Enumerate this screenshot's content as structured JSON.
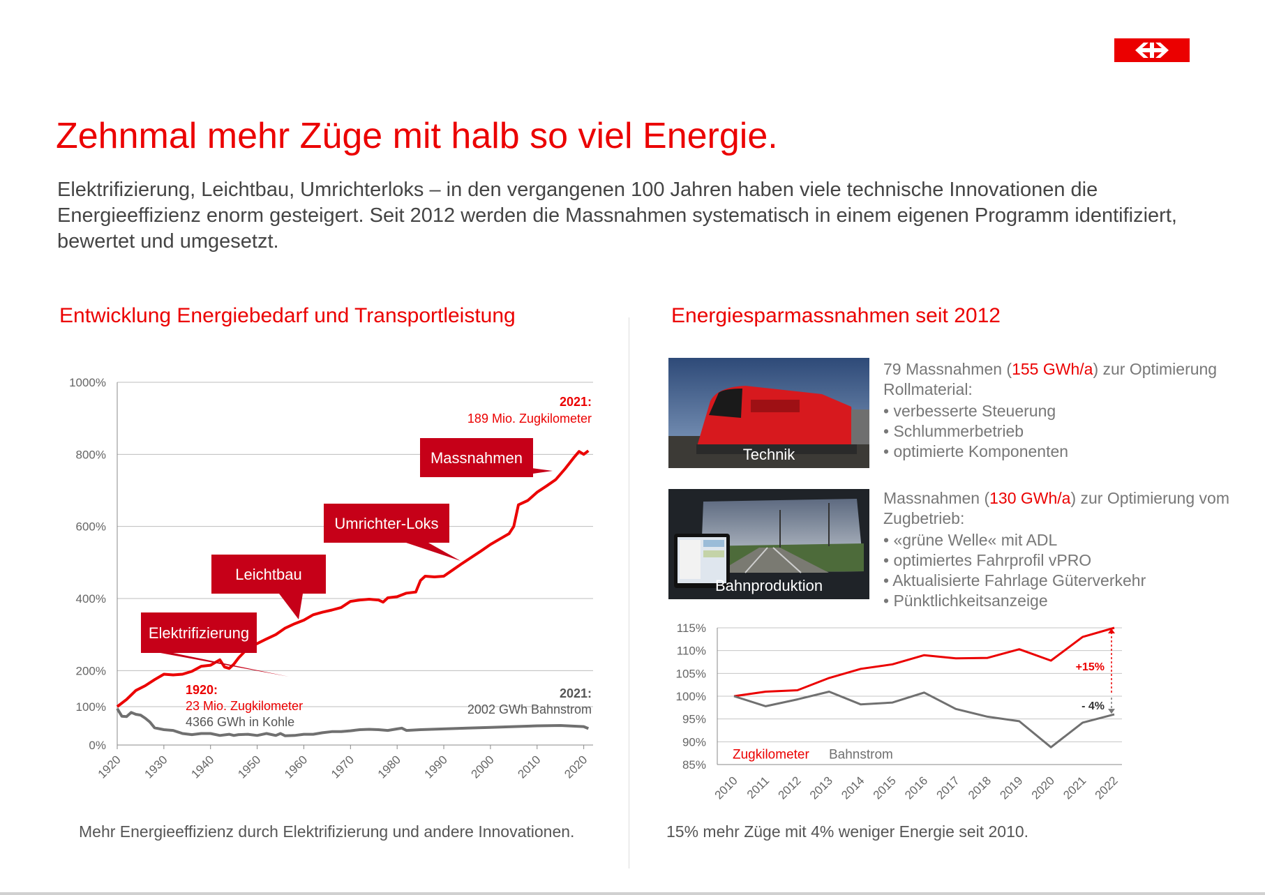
{
  "logo": {
    "brand_color": "#eb0000",
    "icon": "sbb-arrows-icon"
  },
  "title": "Zehnmal mehr Züge mit halb so viel Energie.",
  "intro": "Elektrifizierung, Leichtbau,  Umrichterloks – in den vergangenen 100 Jahren haben viele technische Innovationen die Energieeffizienz enorm gesteigert. Seit 2012 werden die Massnahmen systematisch in einem eigenen Programm identifiziert, bewertet und umgesetzt.",
  "left": {
    "title": "Entwicklung Energiebedarf und Transportleistung",
    "caption": "Mehr Energieeffizienz durch Elektrifizierung und andere Innovationen."
  },
  "right": {
    "title": "Energiesparmassnahmen seit 2012",
    "caption": "15% mehr Züge mit 4% weniger Energie seit 2010.",
    "block1": {
      "photo_label": "Technik",
      "pre": "79 Massnahmen (",
      "highlight": "155 GWh/a",
      "post": ") zur Optimierung Rollmaterial:",
      "bullets": [
        "verbesserte Steuerung",
        "Schlummerbetrieb",
        "optimierte Komponenten"
      ]
    },
    "block2": {
      "photo_label": "Bahnproduktion",
      "pre": "Massnahmen (",
      "highlight": "130 GWh/a",
      "post": ") zur Optimierung vom Zugbetrieb:",
      "bullets": [
        "«grüne Welle« mit ADL",
        "optimiertes Fahrprofil vPRO",
        "Aktualisierte Fahrlage Güterverkehr",
        "Pünktlichkeitsanzeige"
      ]
    }
  },
  "chart_data": [
    {
      "type": "line",
      "y_ticks": [
        "0%",
        "100%",
        "200%",
        "400%",
        "600%",
        "800%",
        "1000%"
      ],
      "y_tick_values": [
        0,
        100,
        200,
        400,
        600,
        800,
        1000
      ],
      "x_ticks": [
        "1920",
        "1930",
        "1940",
        "1950",
        "1960",
        "1970",
        "1980",
        "1990",
        "2000",
        "2010",
        "2020"
      ],
      "xlim": [
        1920,
        2022
      ],
      "ylim": [
        0,
        1000
      ],
      "grid": true,
      "series": [
        {
          "name": "Zugkilometer",
          "color": "#eb0000",
          "x": [
            1920,
            1922,
            1924,
            1926,
            1928,
            1930,
            1932,
            1934,
            1936,
            1938,
            1940,
            1942,
            1943,
            1944,
            1945,
            1946,
            1948,
            1950,
            1952,
            1954,
            1956,
            1958,
            1960,
            1962,
            1964,
            1966,
            1968,
            1970,
            1972,
            1974,
            1976,
            1977,
            1978,
            1980,
            1982,
            1984,
            1985,
            1986,
            1988,
            1990,
            1992,
            1994,
            1996,
            1998,
            2000,
            2002,
            2004,
            2005,
            2006,
            2008,
            2010,
            2012,
            2014,
            2016,
            2018,
            2019,
            2020,
            2021
          ],
          "values": [
            100,
            120,
            145,
            158,
            175,
            190,
            188,
            190,
            198,
            212,
            215,
            230,
            210,
            206,
            218,
            235,
            262,
            275,
            288,
            300,
            318,
            330,
            340,
            355,
            362,
            368,
            375,
            392,
            396,
            398,
            396,
            390,
            402,
            405,
            415,
            418,
            450,
            462,
            460,
            462,
            480,
            498,
            515,
            532,
            550,
            565,
            580,
            600,
            660,
            672,
            695,
            712,
            730,
            760,
            793,
            808,
            800,
            810
          ]
        },
        {
          "name": "Bahnstrom",
          "color": "#707070",
          "x": [
            1920,
            1921,
            1922,
            1923,
            1924,
            1925,
            1926,
            1927,
            1928,
            1930,
            1932,
            1934,
            1936,
            1938,
            1940,
            1942,
            1944,
            1945,
            1946,
            1948,
            1950,
            1952,
            1954,
            1955,
            1956,
            1958,
            1960,
            1962,
            1964,
            1966,
            1968,
            1970,
            1972,
            1974,
            1976,
            1978,
            1980,
            1981,
            1982,
            1985,
            1990,
            1995,
            2000,
            2005,
            2010,
            2015,
            2020,
            2021
          ],
          "values": [
            95,
            75,
            74,
            85,
            80,
            78,
            70,
            60,
            45,
            40,
            38,
            30,
            27,
            30,
            30,
            25,
            28,
            25,
            27,
            28,
            25,
            30,
            25,
            30,
            24,
            25,
            28,
            28,
            32,
            35,
            35,
            37,
            40,
            41,
            40,
            38,
            42,
            44,
            38,
            40,
            42,
            44,
            46,
            48,
            50,
            51,
            48,
            43
          ]
        }
      ],
      "annotations": {
        "end_label": "2021:",
        "end_value": "189 Mio. Zugkilometer",
        "start_label": "1920:",
        "start_value": "23 Mio. Zugkilometer",
        "start_energy": "4366 GWh in Kohle",
        "end_energy_label": "2021:",
        "end_energy_value": "2002 GWh Bahnstrom",
        "callouts": [
          "Elektrifizierung",
          "Leichtbau",
          "Umrichter-Loks",
          "Massnahmen"
        ]
      }
    },
    {
      "type": "line",
      "x": [
        "2010",
        "2011",
        "2012",
        "2013",
        "2014",
        "2015",
        "2016",
        "2017",
        "2018",
        "2019",
        "2020",
        "2021",
        "2022"
      ],
      "y_ticks": [
        "85%",
        "90%",
        "95%",
        "100%",
        "105%",
        "110%",
        "115%"
      ],
      "y_tick_values": [
        85,
        90,
        95,
        100,
        105,
        110,
        115
      ],
      "ylim": [
        85,
        115
      ],
      "grid": true,
      "series": [
        {
          "name": "Zugkilometer",
          "color": "#eb0000",
          "values": [
            100,
            101,
            101.3,
            104,
            106,
            107,
            109,
            108.3,
            108.4,
            110.3,
            107.8,
            113,
            115
          ]
        },
        {
          "name": "Bahnstrom",
          "color": "#707070",
          "values": [
            100,
            97.8,
            99.3,
            101,
            98.2,
            98.6,
            100.8,
            97.2,
            95.5,
            94.5,
            88.8,
            94.2,
            96
          ]
        }
      ],
      "annotations": {
        "plus_label": "+15%",
        "minus_label": "- 4%"
      }
    }
  ]
}
